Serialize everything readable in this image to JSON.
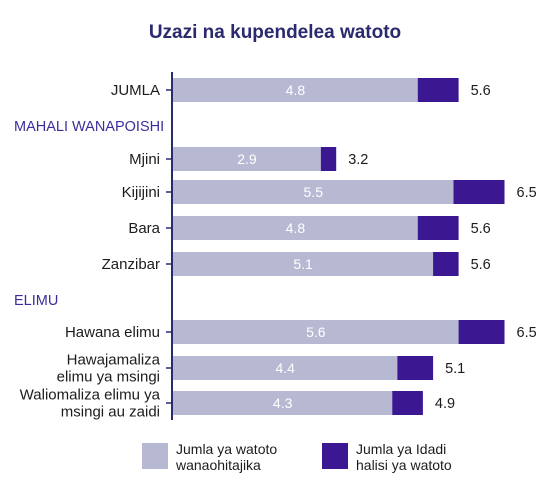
{
  "title": "Uzazi na kupendelea watoto",
  "colors": {
    "wanted": "#b7b9d3",
    "actual": "#3b1791",
    "axis": "#2b2a6e",
    "section": "#3a2f9a"
  },
  "chart_data": {
    "type": "bar",
    "orientation": "horizontal",
    "title": "Uzazi na kupendelea watoto",
    "xlim": [
      0,
      7
    ],
    "rows": [
      {
        "kind": "category",
        "label": [
          "JUMLA"
        ],
        "wanted": 4.8,
        "actual": 5.6
      },
      {
        "kind": "section",
        "label": [
          "MAHALI WANAPOISHI"
        ]
      },
      {
        "kind": "category",
        "label": [
          "Mjini"
        ],
        "wanted": 2.9,
        "actual": 3.2
      },
      {
        "kind": "category",
        "label": [
          "Kijijini"
        ],
        "wanted": 5.5,
        "actual": 6.5
      },
      {
        "kind": "category",
        "label": [
          "Bara"
        ],
        "wanted": 4.8,
        "actual": 5.6
      },
      {
        "kind": "category",
        "label": [
          "Zanzibar"
        ],
        "wanted": 5.1,
        "actual": 5.6
      },
      {
        "kind": "section",
        "label": [
          "ELIMU"
        ]
      },
      {
        "kind": "category",
        "label": [
          "Hawana elimu"
        ],
        "wanted": 5.6,
        "actual": 6.5
      },
      {
        "kind": "category",
        "label": [
          "Hawajamaliza",
          "elimu ya msingi"
        ],
        "wanted": 4.4,
        "actual": 5.1
      },
      {
        "kind": "category",
        "label": [
          "Waliomaliza elimu ya",
          "msingi au zaidi"
        ],
        "wanted": 4.3,
        "actual": 4.9
      }
    ],
    "series": [
      {
        "key": "wanted",
        "name": [
          "Jumla ya watoto",
          "wanaohitajika"
        ]
      },
      {
        "key": "actual",
        "name": [
          "Jumla ya Idadi",
          "halisi ya watoto"
        ]
      }
    ],
    "legend": "bottom"
  }
}
